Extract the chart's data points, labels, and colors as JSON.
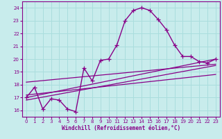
{
  "title": "",
  "xlabel": "Windchill (Refroidissement éolien,°C)",
  "bg_color": "#c8ecec",
  "line_color": "#880088",
  "grid_color": "#aadddd",
  "axis_color": "#880088",
  "xlim": [
    -0.5,
    23.5
  ],
  "ylim": [
    15.5,
    24.5
  ],
  "yticks": [
    16,
    17,
    18,
    19,
    20,
    21,
    22,
    23,
    24
  ],
  "xticks": [
    0,
    1,
    2,
    3,
    4,
    5,
    6,
    7,
    8,
    9,
    10,
    11,
    12,
    13,
    14,
    15,
    16,
    17,
    18,
    19,
    20,
    21,
    22,
    23
  ],
  "curve_x": [
    0,
    1,
    2,
    3,
    4,
    5,
    6,
    7,
    8,
    9,
    10,
    11,
    12,
    13,
    14,
    15,
    16,
    17,
    18,
    19,
    20,
    21,
    22,
    23
  ],
  "curve_y": [
    17.0,
    17.8,
    16.1,
    16.9,
    16.8,
    16.1,
    15.9,
    19.3,
    18.3,
    19.9,
    20.0,
    21.1,
    23.0,
    23.8,
    24.0,
    23.8,
    23.1,
    22.3,
    21.1,
    20.2,
    20.2,
    19.8,
    19.7,
    20.0
  ],
  "line1_x": [
    0,
    23
  ],
  "line1_y": [
    17.0,
    20.0
  ],
  "line2_x": [
    0,
    23
  ],
  "line2_y": [
    16.8,
    19.5
  ],
  "line3_x": [
    0,
    23
  ],
  "line3_y": [
    17.2,
    18.8
  ],
  "line4_x": [
    0,
    23
  ],
  "line4_y": [
    18.2,
    19.6
  ]
}
